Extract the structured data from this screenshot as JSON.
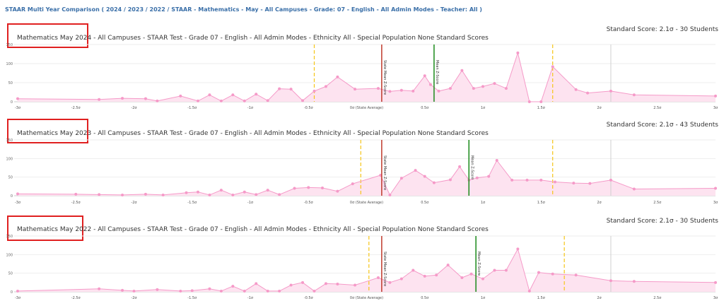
{
  "header": "STAAR Multi Year Comparison ( 2024 / 2023 / 2022 / STAAR - Mathematics - May - All Campuses - Grade: 07 - English - All Admin Modes - Teacher: All )",
  "colors": {
    "series": "#f59ac8",
    "fill": "#fde3f0",
    "state_mean": "#c0392b",
    "mean": "#1a8a1a",
    "sigma_band": "#f5c518",
    "highlight_box": "#e02020",
    "grid": "#eeeeee",
    "header": "#3a6fa8"
  },
  "chart_data": [
    {
      "type": "area",
      "title_prefix": "Mathematics May 2024",
      "title_suffix": " - All Campuses - STAAR Test - Grade 07 - English - All Admin Modes - Ethnicity All - Special Population None Standard Scores",
      "right_label": "Standard Score: 2.1σ - 30 Students",
      "x_ticks": [
        {
          "v": -3,
          "label": "-3σ"
        },
        {
          "v": -2.5,
          "label": "-2.5σ"
        },
        {
          "v": -2,
          "label": "-2σ"
        },
        {
          "v": -1.5,
          "label": "-1.5σ"
        },
        {
          "v": -1,
          "label": "-1σ"
        },
        {
          "v": -0.5,
          "label": "-0.5σ"
        },
        {
          "v": 0,
          "label": "0σ (State Average)"
        },
        {
          "v": 0.5,
          "label": "0.5σ"
        },
        {
          "v": 1,
          "label": "1σ"
        },
        {
          "v": 1.5,
          "label": "1.5σ"
        },
        {
          "v": 2,
          "label": "2σ"
        },
        {
          "v": 2.5,
          "label": "2.5σ"
        },
        {
          "v": 3,
          "label": "3σ"
        }
      ],
      "y_ticks": [
        0,
        50,
        100,
        150
      ],
      "xlim": [
        -3,
        3
      ],
      "ylim": [
        0,
        150
      ],
      "state_mean": {
        "x": 0.13,
        "label": "State Mean Z-Score"
      },
      "mean": {
        "x": 0.58,
        "label": "Mean Z-Score"
      },
      "sigma_lines": [
        -0.45,
        1.6
      ],
      "marker_x": 2.1,
      "x": [
        -3.0,
        -2.3,
        -2.1,
        -1.9,
        -1.8,
        -1.6,
        -1.45,
        -1.35,
        -1.25,
        -1.15,
        -1.05,
        -0.95,
        -0.85,
        -0.75,
        -0.65,
        -0.55,
        -0.45,
        -0.35,
        -0.25,
        -0.1,
        0.1,
        0.2,
        0.3,
        0.4,
        0.5,
        0.55,
        0.62,
        0.72,
        0.82,
        0.92,
        1.0,
        1.1,
        1.2,
        1.3,
        1.4,
        1.5,
        1.6,
        1.8,
        1.9,
        2.1,
        2.3,
        3.0
      ],
      "y": [
        8,
        6,
        9,
        8,
        2,
        15,
        2,
        18,
        2,
        18,
        2,
        20,
        3,
        34,
        33,
        3,
        28,
        40,
        65,
        33,
        35,
        27,
        30,
        28,
        68,
        45,
        28,
        35,
        82,
        35,
        40,
        48,
        35,
        128,
        0,
        0,
        92,
        32,
        23,
        28,
        18,
        15
      ]
    },
    {
      "type": "area",
      "title_prefix": "Mathematics May 2023",
      "title_suffix": " - All Campuses - STAAR Test - Grade 07 - English - All Admin Modes - Ethnicity All - Special Population None Standard Scores",
      "right_label": "Standard Score: 2.1σ - 43 Students",
      "x_ticks": [
        {
          "v": -3,
          "label": "-3σ"
        },
        {
          "v": -2.5,
          "label": "-2.5σ"
        },
        {
          "v": -2,
          "label": "-2σ"
        },
        {
          "v": -1.5,
          "label": "-1.5σ"
        },
        {
          "v": -1,
          "label": "-1σ"
        },
        {
          "v": -0.5,
          "label": "-0.5σ"
        },
        {
          "v": 0,
          "label": "0σ (State Average)"
        },
        {
          "v": 0.5,
          "label": "0.5σ"
        },
        {
          "v": 1,
          "label": "1σ"
        },
        {
          "v": 1.5,
          "label": "1.5σ"
        },
        {
          "v": 2,
          "label": "2σ"
        },
        {
          "v": 2.5,
          "label": "2.5σ"
        },
        {
          "v": 3,
          "label": "3σ"
        }
      ],
      "y_ticks": [
        0,
        50,
        100,
        150
      ],
      "xlim": [
        -3,
        3
      ],
      "ylim": [
        0,
        150
      ],
      "state_mean": {
        "x": 0.13,
        "label": "State Mean Z-Score"
      },
      "mean": {
        "x": 0.88,
        "label": "Mean Z-Score"
      },
      "sigma_lines": [
        -0.05,
        1.6
      ],
      "marker_x": 2.1,
      "x": [
        -3.0,
        -2.5,
        -2.3,
        -2.1,
        -1.9,
        -1.75,
        -1.55,
        -1.45,
        -1.35,
        -1.25,
        -1.15,
        -1.05,
        -0.95,
        -0.85,
        -0.75,
        -0.62,
        -0.5,
        -0.38,
        -0.25,
        -0.12,
        0.12,
        0.2,
        0.3,
        0.42,
        0.5,
        0.58,
        0.72,
        0.8,
        0.88,
        0.95,
        1.05,
        1.12,
        1.25,
        1.38,
        1.5,
        1.62,
        1.78,
        1.92,
        2.1,
        2.3,
        3.0
      ],
      "y": [
        5,
        4,
        3,
        2,
        4,
        2,
        8,
        10,
        2,
        15,
        2,
        10,
        3,
        15,
        3,
        20,
        22,
        21,
        12,
        32,
        55,
        2,
        47,
        68,
        52,
        35,
        43,
        78,
        42,
        48,
        52,
        95,
        42,
        42,
        42,
        37,
        34,
        33,
        42,
        18,
        20
      ]
    },
    {
      "type": "area",
      "title_prefix": "Mathematics May 2022",
      "title_suffix": " - All Campuses - STAAR Test - Grade 07 - English - All Admin Modes - Ethnicity All - Special Population None Standard Scores",
      "right_label": "Standard Score: 2.1σ - 30 Students",
      "x_ticks": [
        {
          "v": -3,
          "label": "-3σ"
        },
        {
          "v": -2.5,
          "label": "-2.5σ"
        },
        {
          "v": -2,
          "label": "-2σ"
        },
        {
          "v": -1.5,
          "label": "-1.5σ"
        },
        {
          "v": -1,
          "label": "-1σ"
        },
        {
          "v": -0.5,
          "label": "-0.5σ"
        },
        {
          "v": 0,
          "label": "0σ (State Average)"
        },
        {
          "v": 0.5,
          "label": "0.5σ"
        },
        {
          "v": 1,
          "label": "1σ"
        },
        {
          "v": 1.5,
          "label": "1.5σ"
        },
        {
          "v": 2,
          "label": "2σ"
        },
        {
          "v": 2.5,
          "label": "2.5σ"
        },
        {
          "v": 3,
          "label": "3σ"
        }
      ],
      "y_ticks": [
        0,
        50,
        100,
        150
      ],
      "xlim": [
        -3,
        3
      ],
      "ylim": [
        0,
        150
      ],
      "state_mean": {
        "x": 0.13,
        "label": "State Mean Z-Score"
      },
      "mean": {
        "x": 0.94,
        "label": "Mean Z-Score"
      },
      "sigma_lines": [
        0.02,
        1.7
      ],
      "marker_x": 2.1,
      "x": [
        -3.0,
        -2.3,
        -2.1,
        -2.0,
        -1.8,
        -1.6,
        -1.5,
        -1.35,
        -1.25,
        -1.15,
        -1.05,
        -0.95,
        -0.85,
        -0.75,
        -0.65,
        -0.55,
        -0.45,
        -0.35,
        -0.25,
        -0.1,
        0.1,
        0.2,
        0.3,
        0.4,
        0.5,
        0.6,
        0.7,
        0.82,
        0.9,
        1.0,
        1.1,
        1.2,
        1.3,
        1.4,
        1.48,
        1.6,
        1.8,
        2.1,
        2.3,
        3.0
      ],
      "y": [
        2,
        8,
        4,
        2,
        6,
        2,
        3,
        8,
        2,
        15,
        2,
        22,
        2,
        2,
        18,
        25,
        2,
        22,
        21,
        18,
        38,
        25,
        35,
        58,
        42,
        45,
        72,
        38,
        48,
        35,
        58,
        58,
        115,
        2,
        52,
        48,
        45,
        30,
        28,
        25
      ]
    }
  ]
}
